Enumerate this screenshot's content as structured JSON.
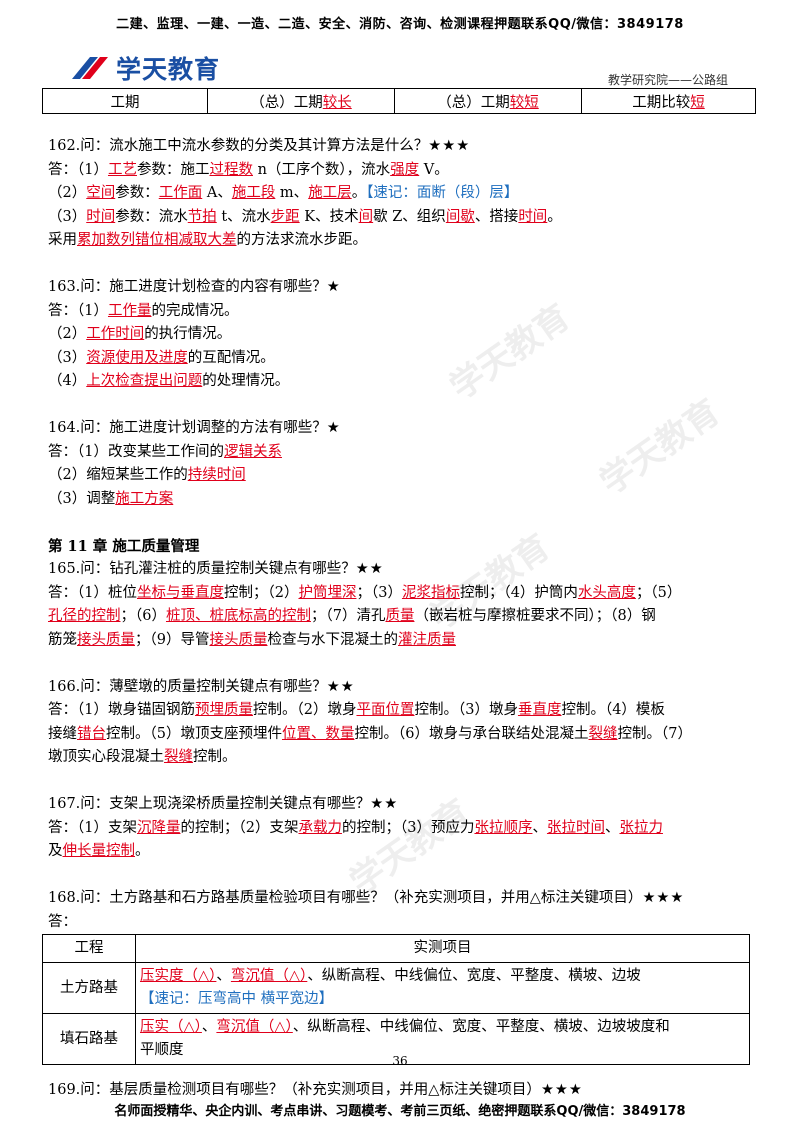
{
  "top_banner": "二建、监理、一建、一造、二造、安全、消防、咨询、检测课程押题联系QQ/微信：3849178",
  "logo_text": "学天教育",
  "dept": "教学研究院——公路组",
  "top_table": [
    "工期",
    "（总）工期",
    "较长",
    "（总）工期",
    "较短",
    "工期比较",
    "短"
  ],
  "q162": {
    "title": "162.问：流水施工中流水参数的分类及其计算方法是什么？",
    "stars": "★★★",
    "l1": [
      "答：（1）",
      "工艺",
      "参数：施工",
      "过程数",
      " n（工序个数），流水",
      "强度",
      " V。"
    ],
    "l2": [
      "（2）",
      "空间",
      "参数：",
      "工作面",
      " A、",
      "施工段",
      " m、",
      "施工层",
      "。",
      "【速记：面断（段）层】"
    ],
    "l3": [
      "（3）",
      "时间",
      "参数：流水",
      "节拍",
      " t、流水",
      "步距",
      " K、技术",
      "间",
      "歇 Z、组织",
      "间歇",
      "、搭接",
      "时间",
      "。"
    ],
    "l4": [
      "采用",
      "累加数列错位相减取大差",
      "的方法求流水步距。"
    ]
  },
  "q163": {
    "title": "163.问：施工进度计划检查的内容有哪些？",
    "stars": "★",
    "l1": [
      "答：（1）",
      "工作量",
      "的完成情况。"
    ],
    "l2": [
      "（2）",
      "工作时间",
      "的执行情况。"
    ],
    "l3": [
      "（3）",
      "资源使用及进度",
      "的互配情况。"
    ],
    "l4": [
      "（4）",
      "上次检查提出问题",
      "的处理情况。"
    ]
  },
  "q164": {
    "title": "164.问：施工进度计划调整的方法有哪些？",
    "stars": "★",
    "l1": [
      "答：（1）改变某些工作间的",
      "逻辑关系"
    ],
    "l2": [
      "（2）缩短某些工作的",
      "持续时间"
    ],
    "l3": [
      "（3）调整",
      "施工方案"
    ]
  },
  "chapter11": [
    "第 11 章",
    "施工质量管理"
  ],
  "q165": {
    "title": "165.问：钻孔灌注桩的质量控制关键点有哪些？",
    "stars": "★★",
    "l1": [
      "答：（1）桩位",
      "坐标与垂直度",
      "控制；（2）",
      "护筒埋深",
      "；（3）",
      "泥浆指标",
      "控制；（4）护筒内",
      "水头高度",
      "；（5）"
    ],
    "l2": [
      "孔径的控制",
      "；（6）",
      "桩顶、桩底标高的控制",
      "；（7）清孔",
      "质量",
      "（嵌岩桩与摩擦桩要求不同）；（8）钢"
    ],
    "l3": [
      "筋笼",
      "接头质量",
      "；（9）导管",
      "接头质量",
      "检查与水下混凝土的",
      "灌注质量"
    ]
  },
  "q166": {
    "title": "166.问：薄壁墩的质量控制关键点有哪些？",
    "stars": "★★",
    "l1": [
      "答：（1）墩身锚固钢筋",
      "预埋质量",
      "控制。（2）墩身",
      "平面位置",
      "控制。（3）墩身",
      "垂直度",
      "控制。（4）模板"
    ],
    "l2": [
      "接缝",
      "错台",
      "控制。（5）墩顶支座预埋件",
      "位置、数量",
      "控制。（6）墩身与承台联结处混凝土",
      "裂缝",
      "控制。（7）"
    ],
    "l3": [
      "墩顶实心段混凝土",
      "裂缝",
      "控制。"
    ]
  },
  "q167": {
    "title": "167.问：支架上现浇梁桥质量控制关键点有哪些？",
    "stars": "★★",
    "l1": [
      "答：（1）支架",
      "沉降量",
      "的控制；（2）支架",
      "承载力",
      "的控制；（3）预应力",
      "张拉顺序",
      "、",
      "张拉时间",
      "、",
      "张拉力"
    ],
    "l2": [
      "及",
      "伸长量控制",
      "。"
    ]
  },
  "q168": {
    "title": "168.问：土方路基和石方路基质量检验项目有哪些？（补充实测项目，并用△标注关键项目）",
    "stars": "★★★",
    "answer": "答：",
    "table_headers": [
      "工程",
      "实测项目"
    ],
    "rows": [
      {
        "eng": "土方路基",
        "a": "压实度（△）",
        "b": "弯沉值（△）",
        "rest": "、纵断高程、中线偏位、宽度、平整度、横坡、边坡",
        "memo": "【速记：压弯高中  横平宽边】"
      },
      {
        "eng": "填石路基",
        "a": "压实（△）",
        "b": "弯沉值（△）",
        "rest": "、纵断高程、中线偏位、宽度、平整度、横坡、边坡坡度和",
        "rest2": "平顺度"
      }
    ]
  },
  "q169": {
    "title": "169.问：基层质量检测项目有哪些？（补充实测项目，并用△标注关键项目）",
    "stars": "★★★"
  },
  "page_number": "36",
  "bottom_banner": "名师面授精华、央企内训、考点串讲、习题模考、考前三页纸、绝密押题联系QQ/微信：3849178",
  "watermarks": [
    "学天教育",
    "学天教育",
    "学天教育",
    "学天教育"
  ],
  "colors": {
    "key_red": "#e0001b",
    "memo_blue": "#1f6fbf",
    "logo_blue": "#1a4fa3"
  }
}
